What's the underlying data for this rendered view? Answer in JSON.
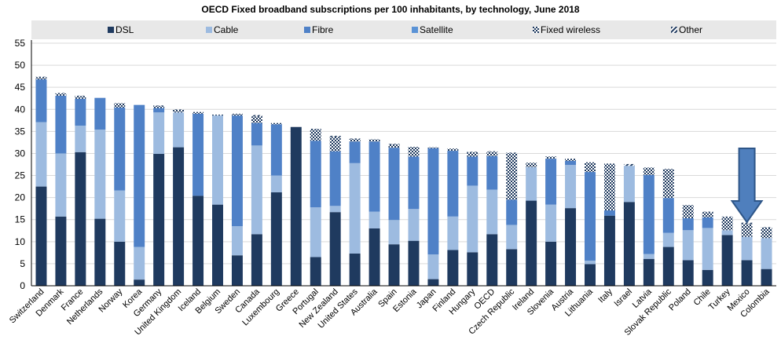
{
  "chart_data": {
    "type": "bar",
    "stacked": true,
    "title": "OECD Fixed broadband subscriptions per 100 inhabitants, by technology, June 2018",
    "xlabel": "",
    "ylabel": "",
    "ylim": [
      0,
      55
    ],
    "yticks": [
      0,
      5,
      10,
      15,
      20,
      25,
      30,
      35,
      40,
      45,
      50,
      55
    ],
    "grid": true,
    "legend_position": "top",
    "categories": [
      "Switzerland",
      "Denmark",
      "France",
      "Netherlands",
      "Norway",
      "Korea",
      "Germany",
      "United Kingdom",
      "Iceland",
      "Belgium",
      "Sweden",
      "Canada",
      "Luxembourg",
      "Greece",
      "Portugal",
      "New Zealand",
      "United States",
      "Australia",
      "Spain",
      "Estonia",
      "Japan",
      "Finland",
      "Hungary",
      "OECD",
      "Czech Republic",
      "Ireland",
      "Slovenia",
      "Austria",
      "Lithuania",
      "Italy",
      "Israel",
      "Latvia",
      "Slovak Republic",
      "Poland",
      "Chile",
      "Turkey",
      "Mexico",
      "Colombia"
    ],
    "series": [
      {
        "name": "DSL",
        "color": "#1f3a5f",
        "pattern": "solid",
        "values": [
          22.5,
          15.7,
          30.3,
          15.2,
          10.0,
          1.4,
          29.9,
          31.4,
          20.4,
          18.4,
          6.9,
          11.7,
          21.2,
          36.0,
          6.5,
          16.7,
          7.3,
          13.0,
          9.4,
          10.2,
          1.5,
          8.1,
          7.6,
          11.7,
          8.3,
          19.3,
          10.0,
          17.6,
          4.9,
          15.9,
          19.0,
          6.1,
          8.8,
          5.8,
          3.6,
          11.5,
          5.8,
          3.8
        ]
      },
      {
        "name": "Cable",
        "color": "#9dbbe0",
        "pattern": "solid",
        "values": [
          14.6,
          14.3,
          6.0,
          20.2,
          11.6,
          7.4,
          9.4,
          7.9,
          0.0,
          20.2,
          6.6,
          20.1,
          3.8,
          0.0,
          11.3,
          1.4,
          20.5,
          3.8,
          5.5,
          7.2,
          5.6,
          7.6,
          15.1,
          10.1,
          5.5,
          7.6,
          8.4,
          9.8,
          0.8,
          0.0,
          8.2,
          1.1,
          3.2,
          6.8,
          9.5,
          1.1,
          5.3,
          7.0
        ]
      },
      {
        "name": "Fibre",
        "color": "#4f81c7",
        "pattern": "solid",
        "values": [
          9.7,
          13.1,
          6.1,
          7.2,
          18.8,
          32.2,
          1.0,
          0.0,
          18.6,
          0.0,
          25.1,
          5.1,
          11.6,
          0.0,
          15.1,
          12.4,
          4.9,
          15.9,
          16.4,
          11.9,
          24.1,
          14.9,
          6.6,
          7.6,
          5.7,
          0.0,
          10.4,
          0.9,
          20.1,
          1.2,
          0.0,
          17.9,
          7.9,
          2.7,
          2.4,
          0.0,
          0.0,
          0.0
        ]
      },
      {
        "name": "Satellite",
        "color": "#5b93d6",
        "pattern": "solid",
        "values": [
          0.0,
          0.0,
          0.0,
          0.0,
          0.0,
          0.0,
          0.0,
          0.0,
          0.0,
          0.0,
          0.0,
          0.0,
          0.0,
          0.0,
          0.0,
          0.0,
          0.0,
          0.0,
          0.0,
          0.0,
          0.0,
          0.0,
          0.0,
          0.0,
          0.0,
          0.0,
          0.0,
          0.0,
          0.0,
          0.0,
          0.0,
          0.0,
          0.0,
          0.0,
          0.0,
          0.0,
          0.0,
          0.0
        ]
      },
      {
        "name": "Fixed wireless",
        "color": "#1f3a5f",
        "pattern": "checker",
        "values": [
          0.5,
          0.5,
          0.6,
          0.0,
          1.0,
          0.0,
          0.5,
          0.6,
          0.4,
          0.2,
          0.4,
          1.5,
          0.3,
          0.0,
          2.6,
          3.2,
          0.6,
          0.5,
          0.8,
          2.2,
          0.2,
          0.5,
          1.0,
          1.0,
          10.6,
          1.0,
          0.5,
          0.5,
          2.2,
          10.6,
          0.0,
          1.7,
          6.6,
          3.0,
          1.2,
          3.0,
          2.9,
          2.4
        ]
      },
      {
        "name": "Other",
        "color": "#1f3a5f",
        "pattern": "hatch",
        "values": [
          0.1,
          0.1,
          0.1,
          0.0,
          0.0,
          0.0,
          0.1,
          0.1,
          0.0,
          0.0,
          0.0,
          0.3,
          0.0,
          0.0,
          0.1,
          0.3,
          0.1,
          0.0,
          0.1,
          0.0,
          0.0,
          0.0,
          0.1,
          0.1,
          0.1,
          0.0,
          0.0,
          0.0,
          0.0,
          0.0,
          0.4,
          0.0,
          0.0,
          0.0,
          0.1,
          0.1,
          0.3,
          0.1
        ]
      }
    ],
    "annotation": {
      "type": "arrow-down",
      "category": "Mexico",
      "color": "#4f7fbd"
    }
  }
}
